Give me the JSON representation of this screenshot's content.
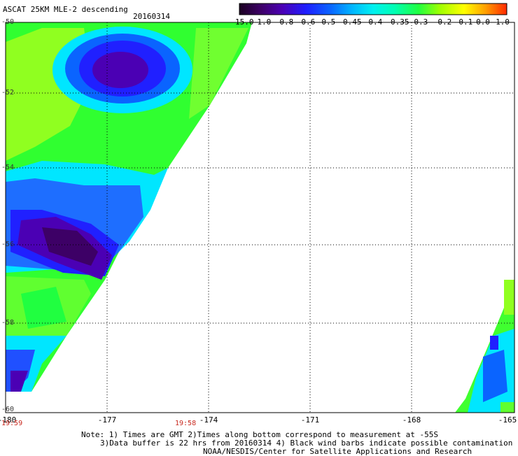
{
  "header": {
    "title": "ASCAT 25KM MLE-2 descending",
    "date": "20160314"
  },
  "colorbar": {
    "labels": [
      "-15.0",
      "-1.0",
      "-0.8",
      "-0.6",
      "-0.5",
      "-0.45",
      "-0.4",
      "-0.35",
      "-0.3",
      "-0.2",
      "-0.1",
      "0.0",
      "1.0"
    ],
    "colors": [
      "#1a0020",
      "#3d0066",
      "#4b00b4",
      "#1e1eff",
      "#0a64ff",
      "#00b4ff",
      "#00f0f0",
      "#00ffb4",
      "#20ff40",
      "#a0ff00",
      "#ffff00",
      "#ffa000",
      "#ff2800"
    ]
  },
  "axes": {
    "y_labels": [
      "-50",
      "-52",
      "-54",
      "-56",
      "-58",
      "-60"
    ],
    "x_labels": [
      "-180",
      "-177",
      "-174",
      "-171",
      "-168",
      "-165"
    ],
    "x_range": [
      -180,
      -165
    ],
    "y_range": [
      -60,
      -50
    ],
    "grid": "dotted"
  },
  "times": {
    "left": "19:59",
    "mid": "19:58"
  },
  "notes": {
    "line1": "Note: 1) Times are GMT 2)Times along bottom correspond to measurement at -55S",
    "line2": "3)Data buffer is 22 hrs from 20160314 4) Black wind barbs indicate possible contamination",
    "line3": "NOAA/NESDIS/Center for Satellite Applications and Research"
  },
  "chart_data": {
    "type": "heatmap",
    "title": "ASCAT 25KM MLE-2 descending",
    "x": [
      -180,
      -177,
      -174,
      -171,
      -168,
      -165
    ],
    "y": [
      -50,
      -52,
      -54,
      -56,
      -58,
      -60
    ],
    "colorbar_range": [
      -15.0,
      1.0
    ],
    "swaths": [
      {
        "description_region": "west",
        "lon_range": [
          -180,
          -172.8
        ],
        "lat_range": [
          -60,
          -50
        ],
        "dominant_values": [
          -0.3,
          -0.35,
          -0.6,
          -1.0
        ]
      },
      {
        "description_region": "east",
        "lon_range": [
          -166.3,
          -165
        ],
        "lat_range": [
          -60,
          -57.2
        ],
        "dominant_values": [
          -0.3,
          -0.4,
          -0.6
        ]
      }
    ]
  }
}
